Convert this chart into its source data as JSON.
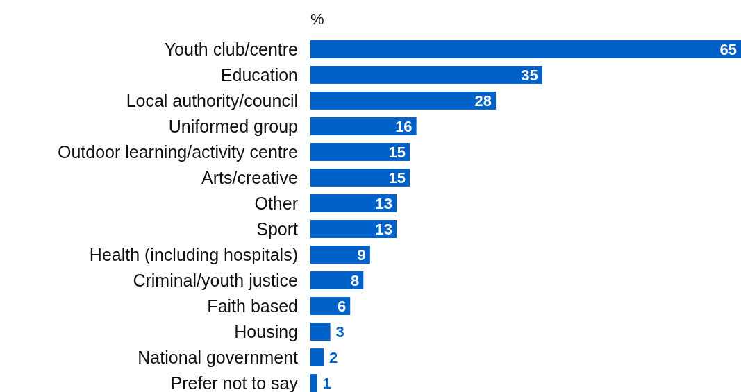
{
  "chart_data": {
    "type": "bar",
    "orientation": "horizontal",
    "xlabel": "%",
    "categories": [
      "Youth club/centre",
      "Education",
      "Local authority/council",
      "Uniformed group",
      "Outdoor learning/activity centre",
      "Arts/creative",
      "Other",
      "Sport",
      "Health (including hospitals)",
      "Criminal/youth justice",
      "Faith based",
      "Housing",
      "National government",
      "Prefer not to say"
    ],
    "values": [
      65,
      35,
      28,
      16,
      15,
      15,
      13,
      13,
      9,
      8,
      6,
      3,
      2,
      1
    ],
    "color": "#0061c8",
    "data_labels": true
  }
}
